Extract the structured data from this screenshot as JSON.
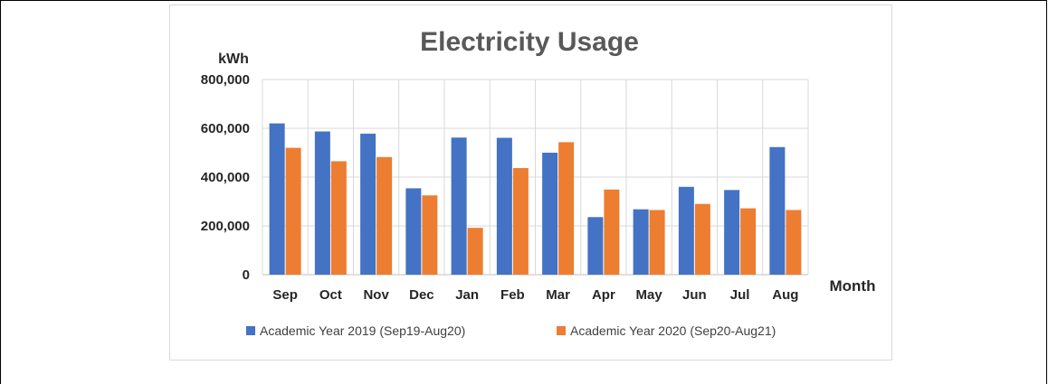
{
  "chart_data": {
    "type": "bar",
    "title": "Electricity Usage",
    "ylabel": "kWh",
    "xlabel": "Month",
    "ylim": [
      0,
      800000
    ],
    "yticks": [
      "800,000",
      "600,000",
      "400,000",
      "200,000",
      "0"
    ],
    "ytick_values": [
      800000,
      600000,
      400000,
      200000,
      0
    ],
    "grid": true,
    "legend_position": "bottom",
    "categories": [
      "Sep",
      "Oct",
      "Nov",
      "Dec",
      "Jan",
      "Feb",
      "Mar",
      "Apr",
      "May",
      "Jun",
      "Jul",
      "Aug"
    ],
    "series": [
      {
        "name": "Academic Year 2019 (Sep19-Aug20)",
        "color": "#4472c4",
        "values": [
          620000,
          587000,
          578000,
          354000,
          562000,
          561000,
          500000,
          236000,
          268000,
          360000,
          347000,
          523000
        ]
      },
      {
        "name": "Academic Year 2020 (Sep20-Aug21)",
        "color": "#ed7d31",
        "values": [
          520000,
          465000,
          482000,
          325000,
          192000,
          437000,
          543000,
          349000,
          265000,
          290000,
          272000,
          265000
        ]
      }
    ]
  }
}
